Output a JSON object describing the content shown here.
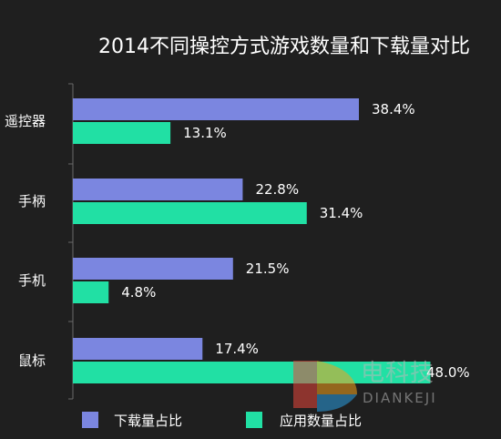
{
  "chart_data": {
    "type": "bar",
    "orientation": "horizontal",
    "title": "2014不同操控方式游戏数量和下载量对比",
    "categories": [
      "遥控器",
      "手柄",
      "手机",
      "鼠标"
    ],
    "series": [
      {
        "name": "下载量占比",
        "values": [
          38.4,
          22.8,
          21.5,
          17.4
        ],
        "labels": [
          "38.4%",
          "22.8%",
          "21.5%",
          "17.4%"
        ],
        "color": "#7b86e0"
      },
      {
        "name": "应用数量占比",
        "values": [
          13.1,
          31.4,
          4.8,
          48.0
        ],
        "labels": [
          "13.1%",
          "31.4%",
          "4.8%",
          "48.0%"
        ],
        "color": "#21e0a4"
      }
    ],
    "xlim": [
      0,
      50
    ],
    "grid": false,
    "legend_position": "bottom"
  },
  "watermark": {
    "text": "电科技",
    "subtext": "DIANKEJI",
    "colors": [
      "#e8463a",
      "#f4a31b",
      "#2a9de0"
    ]
  },
  "colors": {
    "background": "#1f1f1f",
    "axis": "#6a6a6a"
  }
}
